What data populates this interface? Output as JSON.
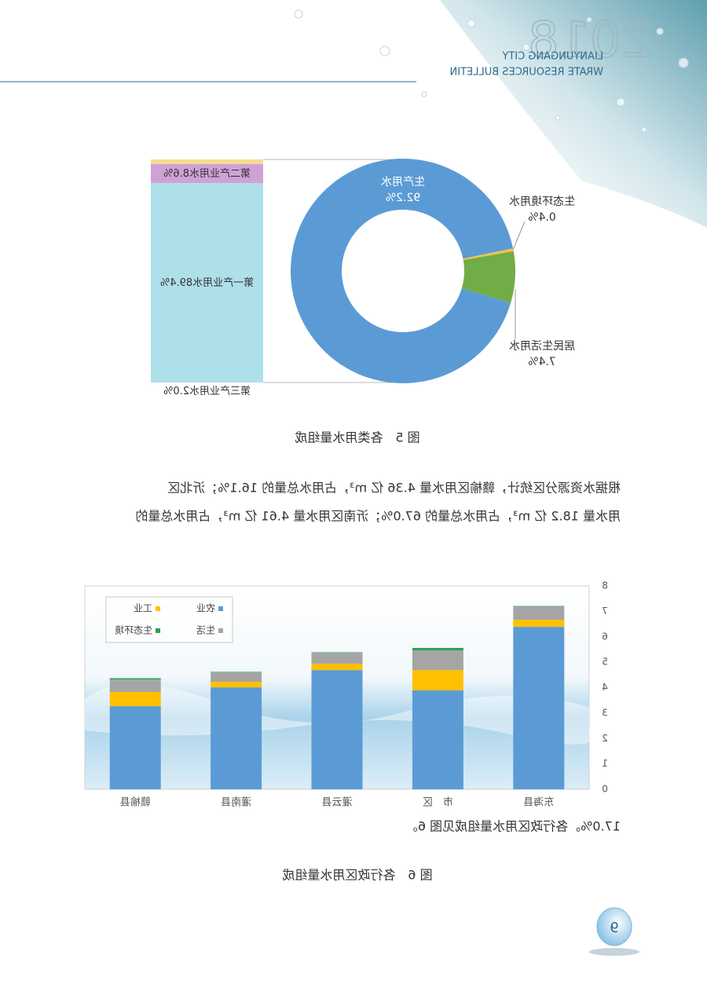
{
  "header": {
    "year": "2018",
    "city": "LIANYUNGANG CITY",
    "bulletin": "WRATE RESOURCES BULLETIN"
  },
  "chart_data": [
    {
      "type": "donut",
      "categories": [
        "生产用水",
        "生态环境用水",
        "居民生活用水"
      ],
      "values": [
        92.2,
        0.4,
        7.4
      ],
      "value_labels": [
        "92.2%",
        "0.4%",
        "7.4%"
      ],
      "colors": [
        "#5b9bd5",
        "#f2c14e",
        "#70ad47"
      ]
    },
    {
      "type": "stacked_column",
      "ylim": [
        0,
        100
      ],
      "series": [
        {
          "name": "第一产业用水",
          "color": "#aee0ea",
          "values": [
            89.4
          ],
          "value_labels": [
            "89.4%"
          ]
        },
        {
          "name": "第二产业用水",
          "color": "#cfa2d6",
          "values": [
            8.6
          ],
          "value_labels": [
            "8.6%"
          ]
        },
        {
          "name": "第三产业用水",
          "color": "#f7dc8c",
          "values": [
            2.0
          ],
          "value_labels": [
            "2.0%"
          ]
        }
      ]
    },
    {
      "type": "stacked_bar",
      "categories": [
        "东海县",
        "市　区",
        "灌云县",
        "灌南县",
        "赣榆县"
      ],
      "series": [
        {
          "name": "农业",
          "color": "#5b9bd5",
          "values": [
            6.39,
            3.89,
            4.69,
            4.01,
            3.27
          ]
        },
        {
          "name": "工业",
          "color": "#ffc000",
          "values": [
            0.28,
            0.8,
            0.25,
            0.22,
            0.56
          ]
        },
        {
          "name": "生活",
          "color": "#a5a5a5",
          "values": [
            0.52,
            0.77,
            0.43,
            0.37,
            0.49
          ]
        },
        {
          "name": "生态环境",
          "color": "#2ca05a",
          "values": [
            0.02,
            0.1,
            0.02,
            0.02,
            0.05
          ]
        }
      ],
      "ylim": [
        0,
        8
      ],
      "yticks": [
        0,
        1,
        2,
        3,
        4,
        5,
        6,
        7,
        8
      ],
      "legend": "upper right"
    }
  ],
  "figure5_caption": "图 5　各类用水量组成",
  "paragraph": [
    "根据水资源分区统计，赣榆区用水量 4.36 亿 m³，占用水总量的 16.1%；沂北区",
    "用水量 18.2 亿 m³，占用水总量的 67.0%；沂南区用水量 4.61 亿 m³，占用水总量的",
    "17.0%。各行政区用水量组成见图 6。"
  ],
  "figure6_caption": "图 6　各行政区用水量组成",
  "page_number": "9"
}
